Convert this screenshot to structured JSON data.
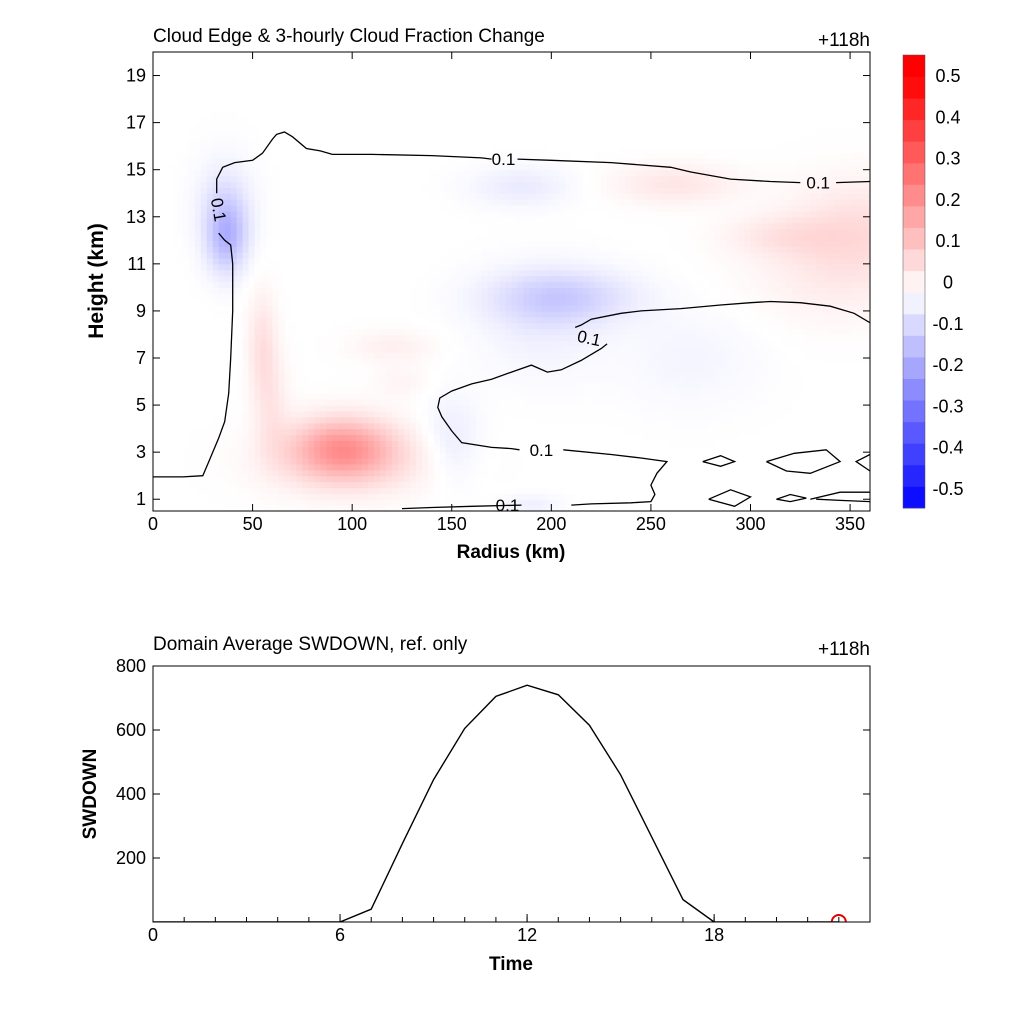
{
  "chart_data": [
    {
      "type": "heatmap",
      "title": "Cloud Edge & 3-hourly Cloud Fraction Change",
      "time_label": "+118h",
      "xlabel": "Radius (km)",
      "ylabel": "Height (km)",
      "xlim": [
        0,
        360
      ],
      "ylim": [
        0.5,
        20
      ],
      "xticks": [
        0,
        50,
        100,
        150,
        200,
        250,
        300,
        350
      ],
      "yticks": [
        1,
        3,
        5,
        7,
        9,
        11,
        13,
        15,
        17,
        19
      ],
      "colorbar": {
        "levels": [
          -0.5,
          -0.45,
          -0.4,
          -0.35,
          -0.3,
          -0.25,
          -0.2,
          -0.15,
          -0.1,
          -0.05,
          0,
          0.05,
          0.1,
          0.15,
          0.2,
          0.25,
          0.3,
          0.35,
          0.4,
          0.45,
          0.5,
          0.55
        ],
        "tick_labels": [
          "0.5",
          "0.4",
          "0.3",
          "0.2",
          "0.1",
          "0",
          "-0.1",
          "-0.2",
          "-0.3",
          "-0.4",
          "-0.5"
        ],
        "negative_color": "#0000ff",
        "positive_color": "#ff0000"
      },
      "anomalies": [
        {
          "x": 95,
          "y": 3.2,
          "sx": 18,
          "sy": 0.9,
          "value": 0.18
        },
        {
          "x": 100,
          "y": 2.6,
          "sx": 30,
          "sy": 1.0,
          "value": 0.06
        },
        {
          "x": 37,
          "y": 12.2,
          "sx": 7,
          "sy": 1.1,
          "value": -0.13
        },
        {
          "x": 36,
          "y": 13.5,
          "sx": 10,
          "sy": 1.4,
          "value": -0.05
        },
        {
          "x": 205,
          "y": 9.6,
          "sx": 25,
          "sy": 0.8,
          "value": -0.09
        },
        {
          "x": 195,
          "y": 8.5,
          "sx": 22,
          "sy": 1.6,
          "value": -0.03
        },
        {
          "x": 262,
          "y": 14.4,
          "sx": 22,
          "sy": 0.6,
          "value": 0.05
        },
        {
          "x": 185,
          "y": 14.3,
          "sx": 18,
          "sy": 0.6,
          "value": -0.04
        },
        {
          "x": 55,
          "y": 7.5,
          "sx": 5,
          "sy": 1.6,
          "value": 0.06
        },
        {
          "x": 60,
          "y": 5.0,
          "sx": 6,
          "sy": 1.5,
          "value": 0.04
        },
        {
          "x": 355,
          "y": 12.5,
          "sx": 25,
          "sy": 1.5,
          "value": 0.06
        },
        {
          "x": 315,
          "y": 12.2,
          "sx": 20,
          "sy": 0.6,
          "value": 0.04
        },
        {
          "x": 340,
          "y": 10.5,
          "sx": 30,
          "sy": 1.5,
          "value": 0.03
        },
        {
          "x": 150,
          "y": 3.5,
          "sx": 10,
          "sy": 1.3,
          "value": -0.04
        },
        {
          "x": 120,
          "y": 7.5,
          "sx": 15,
          "sy": 0.5,
          "value": 0.03
        },
        {
          "x": 190,
          "y": 0.8,
          "sx": 10,
          "sy": 0.3,
          "value": -0.03
        },
        {
          "x": 125,
          "y": 6.0,
          "sx": 10,
          "sy": 0.5,
          "value": 0.02
        },
        {
          "x": 270,
          "y": 7.0,
          "sx": 25,
          "sy": 1.5,
          "value": -0.02
        }
      ],
      "contours": [
        {
          "level": "0.1",
          "points": [
            [
              0,
              1.95
            ],
            [
              15,
              1.95
            ],
            [
              25,
              2.0
            ],
            [
              28,
              2.6
            ],
            [
              33,
              3.6
            ],
            [
              36,
              4.3
            ],
            [
              38,
              5.5
            ],
            [
              39,
              7.0
            ],
            [
              40,
              9.0
            ],
            [
              40,
              11.0
            ],
            [
              39,
              11.8
            ],
            [
              36,
              12.0
            ],
            [
              33,
              12.3
            ]
          ],
          "labels": [
            {
              "text": "0.1",
              "x": 33,
              "y": 13.3,
              "angle": 80
            }
          ]
        },
        {
          "level": "0.1",
          "points": [
            [
              32,
              14.0
            ],
            [
              32,
              14.6
            ],
            [
              35,
              15.1
            ],
            [
              41,
              15.3
            ],
            [
              50,
              15.4
            ],
            [
              55,
              15.7
            ],
            [
              60,
              16.3
            ],
            [
              62,
              16.5
            ],
            [
              66,
              16.6
            ],
            [
              70,
              16.4
            ],
            [
              77,
              15.9
            ],
            [
              84,
              15.8
            ],
            [
              90,
              15.65
            ],
            [
              110,
              15.65
            ],
            [
              140,
              15.6
            ],
            [
              165,
              15.5
            ],
            [
              170,
              15.45
            ]
          ],
          "labels": [
            {
              "text": "0.1",
              "x": 176,
              "y": 15.45,
              "angle": 0
            }
          ]
        },
        {
          "level": "0.1",
          "points": [
            [
              183,
              15.45
            ],
            [
              200,
              15.4
            ],
            [
              230,
              15.3
            ],
            [
              260,
              15.1
            ],
            [
              270,
              14.9
            ],
            [
              290,
              14.6
            ],
            [
              310,
              14.5
            ],
            [
              325,
              14.45
            ]
          ],
          "labels": [
            {
              "text": "0.1",
              "x": 334,
              "y": 14.45,
              "angle": 0
            }
          ]
        },
        {
          "level": "0.1",
          "points": [
            [
              343,
              14.45
            ],
            [
              360,
              14.5
            ]
          ],
          "labels": []
        },
        {
          "level": "0.1",
          "points": [
            [
              360,
              8.5
            ],
            [
              352,
              8.9
            ],
            [
              340,
              9.2
            ],
            [
              325,
              9.35
            ],
            [
              310,
              9.4
            ],
            [
              300,
              9.35
            ],
            [
              285,
              9.25
            ],
            [
              265,
              9.1
            ],
            [
              245,
              9.0
            ],
            [
              235,
              8.9
            ],
            [
              220,
              8.65
            ],
            [
              215,
              8.4
            ],
            [
              212,
              8.3
            ]
          ],
          "labels": [
            {
              "text": "0.1",
              "x": 219,
              "y": 7.85,
              "angle": 12
            }
          ]
        },
        {
          "level": "0.1",
          "points": [
            [
              228,
              7.6
            ],
            [
              225,
              7.4
            ],
            [
              215,
              6.9
            ],
            [
              205,
              6.5
            ],
            [
              198,
              6.4
            ],
            [
              190,
              6.7
            ],
            [
              180,
              6.4
            ],
            [
              170,
              6.1
            ],
            [
              160,
              5.9
            ],
            [
              150,
              5.6
            ],
            [
              144,
              5.3
            ],
            [
              143,
              4.9
            ],
            [
              145,
              4.5
            ],
            [
              150,
              3.9
            ],
            [
              155,
              3.4
            ],
            [
              170,
              3.2
            ],
            [
              180,
              3.15
            ],
            [
              184,
              3.1
            ]
          ],
          "labels": [
            {
              "text": "0.1",
              "x": 195,
              "y": 3.1,
              "angle": 0
            }
          ]
        },
        {
          "level": "0.1",
          "points": [
            [
              206,
              3.1
            ],
            [
              230,
              2.9
            ],
            [
              245,
              2.75
            ],
            [
              258,
              2.6
            ],
            [
              253,
              2.1
            ],
            [
              250,
              1.6
            ],
            [
              252,
              1.2
            ],
            [
              250,
              0.9
            ],
            [
              240,
              0.85
            ],
            [
              220,
              0.8
            ],
            [
              210,
              0.75
            ]
          ],
          "labels": []
        },
        {
          "level": "0.1",
          "points": [
            [
              185,
              0.75
            ],
            [
              160,
              0.7
            ],
            [
              140,
              0.65
            ],
            [
              125,
              0.6
            ]
          ],
          "labels": [
            {
              "text": "0.1",
              "x": 178,
              "y": 0.75,
              "angle": 0
            }
          ]
        },
        {
          "level": "0.1",
          "points": [
            [
              276,
              2.6
            ],
            [
              285,
              2.85
            ],
            [
              292,
              2.6
            ],
            [
              285,
              2.4
            ],
            [
              276,
              2.6
            ]
          ],
          "labels": []
        },
        {
          "level": "0.1",
          "points": [
            [
              308,
              2.6
            ],
            [
              322,
              2.95
            ],
            [
              338,
              3.1
            ],
            [
              345,
              2.6
            ],
            [
              330,
              2.1
            ],
            [
              318,
              2.2
            ],
            [
              308,
              2.6
            ]
          ],
          "labels": []
        },
        {
          "level": "0.1",
          "points": [
            [
              279,
              1.0
            ],
            [
              290,
              1.4
            ],
            [
              300,
              1.1
            ],
            [
              292,
              0.7
            ],
            [
              279,
              1.0
            ]
          ],
          "labels": []
        },
        {
          "level": "0.1",
          "points": [
            [
              313,
              1.0
            ],
            [
              320,
              1.2
            ],
            [
              328,
              1.05
            ],
            [
              320,
              0.9
            ],
            [
              313,
              1.0
            ]
          ],
          "labels": []
        },
        {
          "level": "0.1",
          "points": [
            [
              330,
              1.0
            ],
            [
              345,
              1.3
            ],
            [
              360,
              1.3
            ]
          ],
          "labels": []
        },
        {
          "level": "0.1",
          "points": [
            [
              333,
              1.0
            ],
            [
              345,
              0.95
            ],
            [
              360,
              0.9
            ]
          ],
          "labels": []
        },
        {
          "level": "0.1",
          "points": [
            [
              360,
              2.9
            ],
            [
              353,
              2.6
            ],
            [
              360,
              2.2
            ]
          ],
          "labels": []
        }
      ]
    },
    {
      "type": "line",
      "title": "Domain Average SWDOWN, ref. only",
      "time_label": "+118h",
      "xlabel": "Time",
      "ylabel": "SWDOWN",
      "xlim": [
        0,
        23
      ],
      "ylim": [
        0,
        800
      ],
      "xticks": [
        0,
        6,
        12,
        18
      ],
      "yticks": [
        200,
        400,
        600,
        800
      ],
      "x": [
        0,
        1,
        2,
        3,
        4,
        5,
        6,
        7,
        8,
        9,
        10,
        11,
        12,
        13,
        14,
        15,
        16,
        17,
        18,
        19,
        20,
        21,
        22
      ],
      "values": [
        0,
        0,
        0,
        0,
        0,
        0,
        0,
        40,
        245,
        445,
        605,
        705,
        740,
        710,
        615,
        460,
        265,
        70,
        0,
        0,
        0,
        0,
        0
      ],
      "marker": {
        "x": 22,
        "y": 0,
        "color": "#e00000"
      }
    }
  ]
}
